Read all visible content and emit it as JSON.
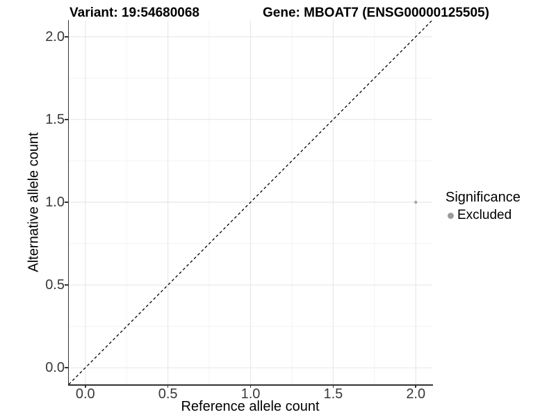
{
  "figure": {
    "title_left": "Variant: 19:54680068",
    "title_right": "Gene: MBOAT7 (ENSG00000125505)"
  },
  "chart_data": {
    "type": "scatter",
    "title": "Variant: 19:54680068    Gene: MBOAT7 (ENSG00000125505)",
    "xlabel": "Reference allele count",
    "ylabel": "Alternative allele count",
    "xlim": [
      -0.1,
      2.1
    ],
    "ylim": [
      -0.1,
      2.1
    ],
    "x_ticks": {
      "values": [
        0,
        0.5,
        1,
        1.5,
        2
      ],
      "labels": [
        "0.0",
        "0.5",
        "1.0",
        "1.5",
        "2.0"
      ]
    },
    "y_ticks": {
      "values": [
        0,
        0.5,
        1,
        1.5,
        2
      ],
      "labels": [
        "0.0",
        "0.5",
        "1.0",
        "1.5",
        "2.0"
      ]
    },
    "x_minor_ticks": [
      0.25,
      0.75,
      1.25,
      1.75
    ],
    "y_minor_ticks": [
      0.25,
      0.75,
      1.25,
      1.75
    ],
    "grid": "major-and-minor",
    "series": [
      {
        "name": "Excluded",
        "marker": "circle",
        "color": "#a8a8a8",
        "points": [
          {
            "x": 2.0,
            "y": 1.0
          }
        ]
      }
    ],
    "reference_line": {
      "description": "identity line y = x",
      "slope": 1,
      "intercept": 0,
      "style": "dashed",
      "color": "#000000"
    },
    "legend": {
      "title": "Significance",
      "position": "right",
      "items": [
        {
          "label": "Excluded",
          "color": "#9b9b9b",
          "marker": "circle"
        }
      ]
    }
  },
  "colors": {
    "background": "#ffffff",
    "grid_major": "#e8e8e8",
    "grid_minor": "#f3f3f3",
    "axis": "#333333",
    "tick_text": "#383838",
    "point": "#a8a8a8",
    "legend_key": "#9b9b9b",
    "reference_line": "#000000"
  }
}
